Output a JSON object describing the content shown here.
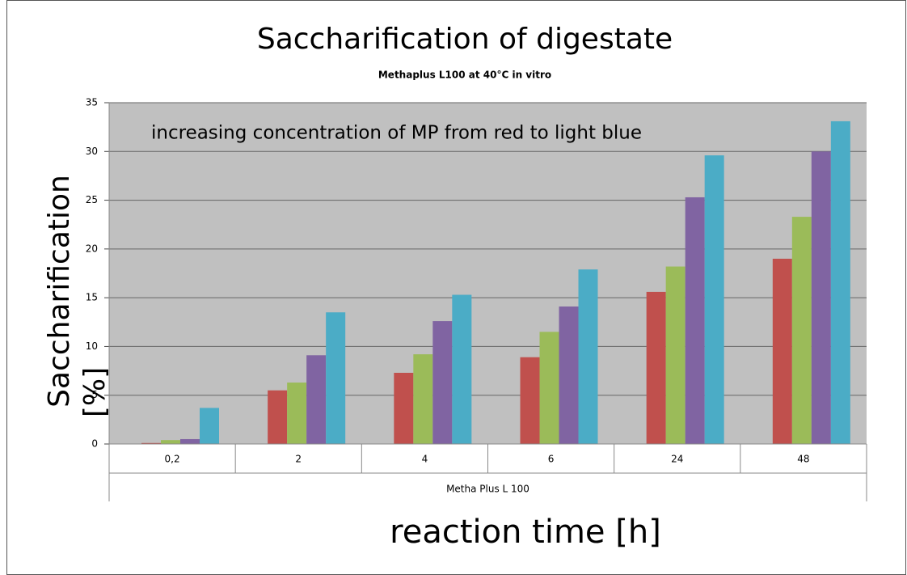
{
  "chart_data": {
    "type": "bar",
    "title": "Saccharification of digestate",
    "subtitle": "Methaplus L100 at  40°C in vitro",
    "annotation": "increasing concentration of MP from red to light blue",
    "y_label": "Saccharification [%]",
    "x_label": "reaction time [h]",
    "group_label": "Metha Plus L 100",
    "categories": [
      "0,2",
      "2",
      "4",
      "6",
      "24",
      "48"
    ],
    "series": [
      {
        "color": "#c0504d",
        "values": [
          0.1,
          5.5,
          7.3,
          8.9,
          15.6,
          19.0
        ]
      },
      {
        "color": "#9bbb59",
        "values": [
          0.4,
          6.3,
          9.2,
          11.5,
          18.2,
          23.3
        ]
      },
      {
        "color": "#8064a2",
        "values": [
          0.5,
          9.1,
          12.6,
          14.1,
          25.3,
          30.0
        ]
      },
      {
        "color": "#4bacc6",
        "values": [
          3.7,
          13.5,
          15.3,
          17.9,
          29.6,
          33.1
        ]
      }
    ],
    "ylim": [
      0,
      35
    ],
    "yticks": [
      0,
      5,
      10,
      15,
      20,
      25,
      30,
      35
    ],
    "grid": true,
    "plot_background": "#c0c0c0"
  }
}
